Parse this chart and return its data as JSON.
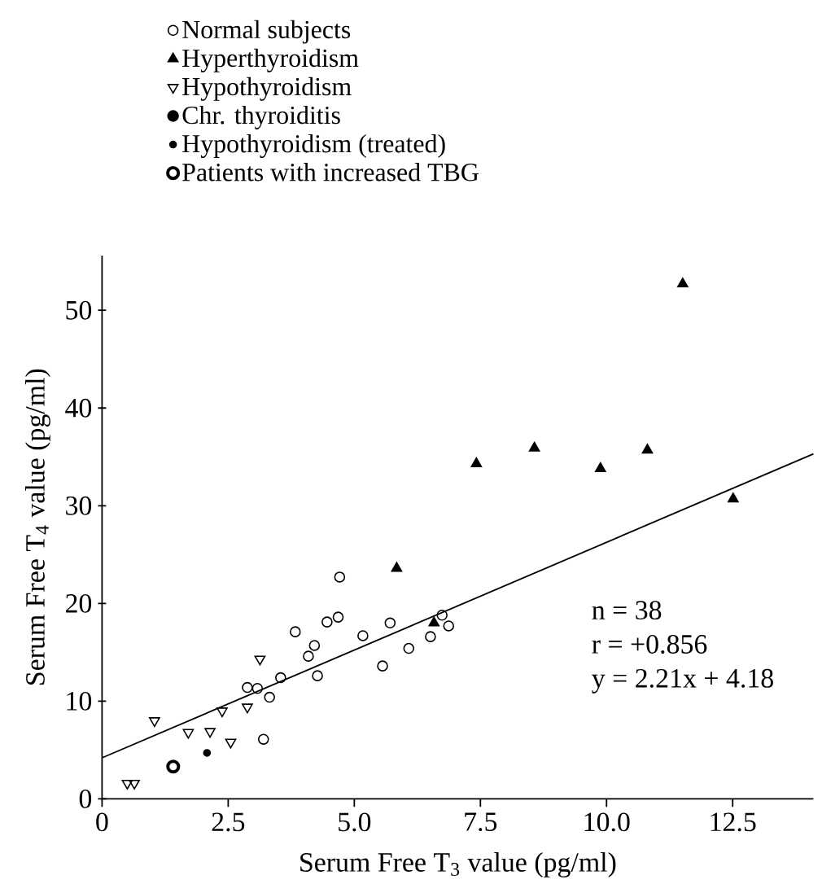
{
  "chart_data": {
    "type": "scatter",
    "xlabel": "Serum Free T$_{3}$ value (pg/ml)",
    "ylabel": "Serum Free T$_{4}$ value (pg/ml)",
    "xlim": [
      0,
      14.1
    ],
    "ylim": [
      0,
      55.6
    ],
    "xticks": [
      0,
      {
        "value": 2.5,
        "label": "2.5"
      },
      {
        "value": 5,
        "label": "5.0"
      },
      {
        "value": 7.5,
        "label": "7.5"
      },
      {
        "value": 10,
        "label": "10.0"
      },
      {
        "value": 12.5,
        "label": "12.5"
      }
    ],
    "yticks": [
      0,
      10,
      20,
      30,
      40,
      50
    ],
    "legend": "top",
    "series": [
      {
        "name": "Normal subjects",
        "color": "#000000",
        "marker": "circle",
        "x": [
          2.88,
          3.08,
          3.32,
          3.2,
          3.54,
          3.83,
          4.09,
          4.21,
          4.27,
          4.46,
          4.68,
          4.71,
          5.17,
          5.56,
          5.71,
          6.08,
          6.51,
          6.74,
          6.87
        ],
        "values": [
          11.4,
          11.3,
          10.4,
          6.1,
          12.4,
          17.1,
          14.6,
          15.7,
          12.6,
          18.1,
          18.6,
          22.7,
          16.7,
          13.6,
          18.0,
          15.4,
          16.6,
          18.8,
          17.7
        ]
      },
      {
        "name": "Hyperthyroidism",
        "color": "#000000",
        "marker": "triangle",
        "x": [
          7.42,
          8.57,
          9.88,
          10.81,
          12.51,
          5.84,
          6.58,
          11.51
        ],
        "values": [
          34.3,
          35.9,
          33.8,
          35.7,
          30.7,
          23.6,
          18.0,
          52.7
        ]
      },
      {
        "name": "Hypothyroidism",
        "color": "#000000",
        "marker": "triangle",
        "x": [
          1.04,
          1.71,
          2.14,
          2.38,
          2.55,
          2.88,
          3.13,
          0.5,
          0.64
        ],
        "values": [
          8.0,
          6.8,
          6.9,
          9.0,
          5.8,
          9.4,
          14.3,
          1.6,
          1.6
        ]
      },
      {
        "name": "Chr. thyroiditis",
        "color": "#000000",
        "marker": "circle"
      },
      {
        "name": "Hypothyroidism (treated)",
        "color": "#000000",
        "marker": "circle",
        "x": [
          2.08
        ],
        "values": [
          4.7
        ]
      },
      {
        "name": "Patients with increased TBG",
        "color": "#000000",
        "marker": "circle",
        "x": [
          1.41
        ],
        "values": [
          3.3
        ]
      },
      {
        "type": "line",
        "color": "#000000",
        "marker": "none",
        "x": [
          0,
          14.1
        ],
        "values": [
          4.2,
          35.3
        ]
      }
    ],
    "annotations": [
      "n = 38",
      "r = +0.856",
      "y = 2.21x + 4.18"
    ]
  }
}
